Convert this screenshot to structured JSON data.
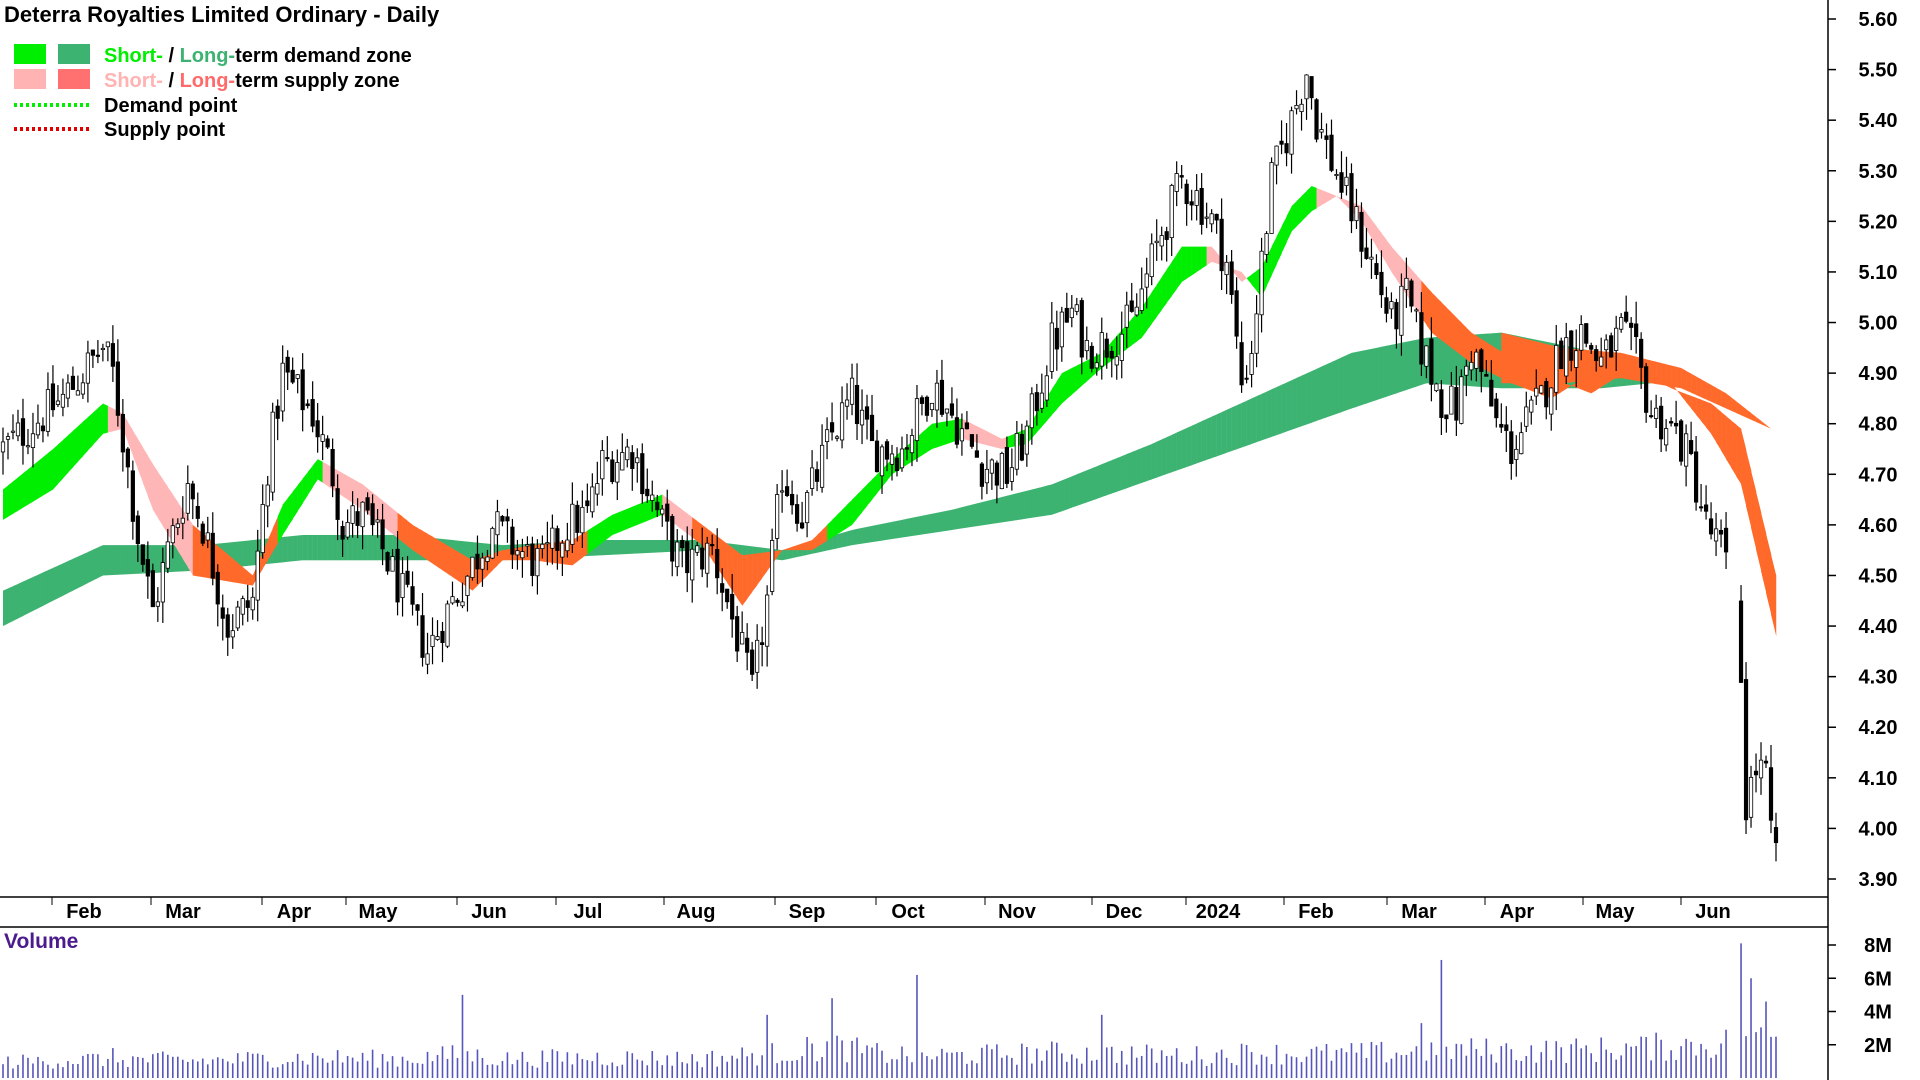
{
  "chart_data": {
    "type": "candlestick",
    "title": "Deterra Royalties Limited Ordinary - Daily",
    "legend": [
      {
        "prefix": "Short-",
        "sep": " / ",
        "mid": "Long-",
        "suffix": "term demand zone",
        "prefix_color": "#00ee00",
        "mid_color": "#3cb371",
        "swatches": [
          "#00ee00",
          "#3cb371"
        ]
      },
      {
        "prefix": "Short-",
        "sep": " / ",
        "mid": "Long-",
        "suffix": "term supply zone",
        "prefix_color": "#ffb3b3",
        "mid_color": "#ff6a6a",
        "swatches": [
          "#ffb3b3",
          "#ff7070"
        ]
      },
      {
        "label": "Demand point",
        "color": "#00ee00",
        "style": "dotted"
      },
      {
        "label": "Supply point",
        "color": "#e00000",
        "style": "dotted"
      }
    ],
    "legend_placement": "top-left",
    "price_axis": {
      "side": "right",
      "ticks": [
        "5.60",
        "5.50",
        "5.40",
        "5.30",
        "5.20",
        "5.10",
        "5.00",
        "4.90",
        "4.80",
        "4.70",
        "4.60",
        "4.50",
        "4.40",
        "4.30",
        "4.20",
        "4.10",
        "4.00",
        "3.90"
      ],
      "ylim": [
        3.87,
        5.64
      ]
    },
    "x_axis": {
      "labels": [
        "Feb",
        "Mar",
        "Apr",
        "May",
        "Jun",
        "Jul",
        "Aug",
        "Sep",
        "Oct",
        "Nov",
        "Dec",
        "2024",
        "Feb",
        "Mar",
        "Apr",
        "May",
        "Jun"
      ]
    },
    "volume_panel": {
      "title": "Volume",
      "ticks": [
        "8M",
        "6M",
        "4M",
        "2M"
      ],
      "ylim": [
        0,
        8.5
      ],
      "unit": "M"
    },
    "colors": {
      "demand_short": "#00ee00",
      "demand_long": "#3cb371",
      "supply_short": "#ffb6b6",
      "supply_long": "#ff6a2a",
      "volume": "#5555bb",
      "volume_title": "#4b1a8c"
    },
    "price_path": [
      [
        0,
        4.75
      ],
      [
        12,
        4.85
      ],
      [
        20,
        4.95
      ],
      [
        22,
        4.9
      ],
      [
        27,
        4.58
      ],
      [
        30,
        4.43
      ],
      [
        33,
        4.55
      ],
      [
        37,
        4.68
      ],
      [
        40,
        4.6
      ],
      [
        45,
        4.4
      ],
      [
        50,
        4.45
      ],
      [
        53,
        4.72
      ],
      [
        56,
        4.9
      ],
      [
        62,
        4.82
      ],
      [
        66,
        4.7
      ],
      [
        68,
        4.6
      ],
      [
        72,
        4.62
      ],
      [
        76,
        4.55
      ],
      [
        85,
        4.35
      ],
      [
        90,
        4.45
      ],
      [
        93,
        4.5
      ],
      [
        98,
        4.6
      ],
      [
        103,
        4.55
      ],
      [
        108,
        4.52
      ],
      [
        113,
        4.6
      ],
      [
        117,
        4.62
      ],
      [
        120,
        4.72
      ],
      [
        126,
        4.75
      ],
      [
        132,
        4.6
      ],
      [
        136,
        4.52
      ],
      [
        142,
        4.55
      ],
      [
        147,
        4.38
      ],
      [
        150,
        4.27
      ],
      [
        153,
        4.45
      ],
      [
        156,
        4.7
      ],
      [
        160,
        4.62
      ],
      [
        166,
        4.78
      ],
      [
        170,
        4.85
      ],
      [
        174,
        4.75
      ],
      [
        180,
        4.75
      ],
      [
        186,
        4.88
      ],
      [
        191,
        4.8
      ],
      [
        196,
        4.72
      ],
      [
        201,
        4.7
      ],
      [
        205,
        4.78
      ],
      [
        210,
        4.96
      ],
      [
        214,
        5.02
      ],
      [
        217,
        4.95
      ],
      [
        221,
        4.96
      ],
      [
        226,
        5.0
      ],
      [
        232,
        5.18
      ],
      [
        236,
        5.28
      ],
      [
        239,
        5.25
      ],
      [
        242,
        5.2
      ],
      [
        245,
        5.12
      ],
      [
        248,
        4.88
      ],
      [
        250,
        4.95
      ],
      [
        254,
        5.28
      ],
      [
        258,
        5.4
      ],
      [
        261,
        5.5
      ],
      [
        263,
        5.4
      ],
      [
        266,
        5.32
      ],
      [
        270,
        5.22
      ],
      [
        274,
        5.12
      ],
      [
        278,
        5.0
      ],
      [
        281,
        5.05
      ],
      [
        284,
        4.95
      ],
      [
        288,
        4.85
      ],
      [
        291,
        4.83
      ],
      [
        294,
        4.95
      ],
      [
        296,
        4.9
      ],
      [
        299,
        4.8
      ],
      [
        302,
        4.75
      ],
      [
        305,
        4.8
      ],
      [
        308,
        4.85
      ],
      [
        312,
        4.95
      ],
      [
        316,
        4.98
      ],
      [
        320,
        4.92
      ],
      [
        324,
        4.98
      ],
      [
        327,
        4.93
      ],
      [
        330,
        4.82
      ],
      [
        333,
        4.8
      ],
      [
        335,
        4.78
      ],
      [
        338,
        4.72
      ],
      [
        341,
        4.6
      ],
      [
        344,
        4.55
      ],
      [
        347,
        4.45
      ],
      [
        348,
        4.3
      ],
      [
        349,
        4.05
      ],
      [
        351,
        4.12
      ],
      [
        353,
        4.1
      ],
      [
        354,
        3.98
      ],
      [
        355,
        3.95
      ]
    ],
    "volume_path": [
      [
        0,
        1.0
      ],
      [
        20,
        1.2
      ],
      [
        40,
        1.1
      ],
      [
        60,
        1.3
      ],
      [
        80,
        1.2
      ],
      [
        92,
        1.5
      ],
      [
        100,
        1.2
      ],
      [
        120,
        1.3
      ],
      [
        140,
        1.2
      ],
      [
        156,
        1.6
      ],
      [
        166,
        2.0
      ],
      [
        176,
        1.5
      ],
      [
        190,
        1.4
      ],
      [
        210,
        1.6
      ],
      [
        224,
        1.5
      ],
      [
        240,
        1.4
      ],
      [
        250,
        1.6
      ],
      [
        260,
        1.5
      ],
      [
        278,
        1.6
      ],
      [
        290,
        1.8
      ],
      [
        305,
        1.7
      ],
      [
        320,
        1.8
      ],
      [
        340,
        2.1
      ],
      [
        355,
        2.5
      ]
    ],
    "volume_spikes": [
      [
        22,
        1.8
      ],
      [
        92,
        5.0
      ],
      [
        153,
        3.8
      ],
      [
        166,
        4.8
      ],
      [
        183,
        6.2
      ],
      [
        220,
        3.8
      ],
      [
        284,
        3.3
      ],
      [
        288,
        7.1
      ],
      [
        348,
        8.1
      ],
      [
        350,
        6.0
      ],
      [
        353,
        4.6
      ]
    ],
    "zones": {
      "long_demand": [
        [
          0,
          4.47,
          4.4
        ],
        [
          20,
          4.56,
          4.5
        ],
        [
          40,
          4.56,
          4.51
        ],
        [
          60,
          4.58,
          4.53
        ],
        [
          80,
          4.58,
          4.53
        ],
        [
          100,
          4.56,
          4.53
        ],
        [
          120,
          4.57,
          4.54
        ],
        [
          140,
          4.57,
          4.55
        ],
        [
          156,
          4.55,
          4.53
        ],
        [
          170,
          4.59,
          4.56
        ],
        [
          190,
          4.63,
          4.59
        ],
        [
          210,
          4.68,
          4.62
        ],
        [
          230,
          4.76,
          4.69
        ],
        [
          250,
          4.85,
          4.76
        ],
        [
          270,
          4.94,
          4.83
        ],
        [
          285,
          4.97,
          4.88
        ],
        [
          300,
          4.98,
          4.87
        ],
        [
          320,
          4.94,
          4.87
        ],
        [
          330,
          4.92,
          4.88
        ]
      ],
      "short_band": [
        [
          0,
          4.67,
          4.61
        ],
        [
          10,
          4.75,
          4.67
        ],
        [
          20,
          4.84,
          4.78
        ],
        [
          24,
          4.82,
          4.79
        ],
        [
          30,
          4.72,
          4.63
        ],
        [
          38,
          4.6,
          4.5
        ],
        [
          50,
          4.5,
          4.48
        ],
        [
          56,
          4.64,
          4.58
        ],
        [
          63,
          4.73,
          4.69
        ],
        [
          72,
          4.68,
          4.63
        ],
        [
          82,
          4.6,
          4.55
        ],
        [
          94,
          4.53,
          4.47
        ],
        [
          100,
          4.55,
          4.53
        ],
        [
          106,
          4.56,
          4.53
        ],
        [
          114,
          4.57,
          4.52
        ],
        [
          122,
          4.62,
          4.58
        ],
        [
          132,
          4.66,
          4.62
        ],
        [
          140,
          4.6,
          4.56
        ],
        [
          148,
          4.54,
          4.44
        ],
        [
          156,
          4.55,
          4.55
        ],
        [
          162,
          4.57,
          4.55
        ],
        [
          170,
          4.65,
          4.6
        ],
        [
          178,
          4.73,
          4.7
        ],
        [
          186,
          4.8,
          4.75
        ],
        [
          192,
          4.81,
          4.77
        ],
        [
          200,
          4.77,
          4.75
        ],
        [
          205,
          4.79,
          4.76
        ],
        [
          212,
          4.9,
          4.84
        ],
        [
          220,
          4.94,
          4.91
        ],
        [
          228,
          5.03,
          4.97
        ],
        [
          236,
          5.15,
          5.08
        ],
        [
          242,
          5.15,
          5.12
        ],
        [
          248,
          5.08,
          5.1
        ],
        [
          252,
          5.11,
          5.05
        ],
        [
          258,
          5.23,
          5.18
        ],
        [
          262,
          5.27,
          5.22
        ],
        [
          267,
          5.25,
          5.25
        ],
        [
          272,
          5.2,
          5.23
        ],
        [
          278,
          5.1,
          5.15
        ],
        [
          286,
          4.98,
          5.06
        ],
        [
          294,
          4.92,
          4.98
        ],
        [
          302,
          4.88,
          4.93
        ],
        [
          310,
          4.85,
          4.89
        ],
        [
          318,
          4.9,
          4.86
        ],
        [
          326,
          4.92,
          4.91
        ],
        [
          334,
          4.88,
          4.87
        ],
        [
          342,
          4.78,
          4.84
        ],
        [
          348,
          4.68,
          4.79
        ],
        [
          355,
          4.38,
          4.5
        ]
      ],
      "long_supply_tail": [
        [
          300,
          4.98,
          4.88
        ],
        [
          312,
          4.95,
          4.88
        ],
        [
          324,
          4.94,
          4.89
        ],
        [
          336,
          4.91,
          4.87
        ],
        [
          345,
          4.86,
          4.83
        ],
        [
          354,
          4.79,
          4.79
        ]
      ]
    }
  }
}
